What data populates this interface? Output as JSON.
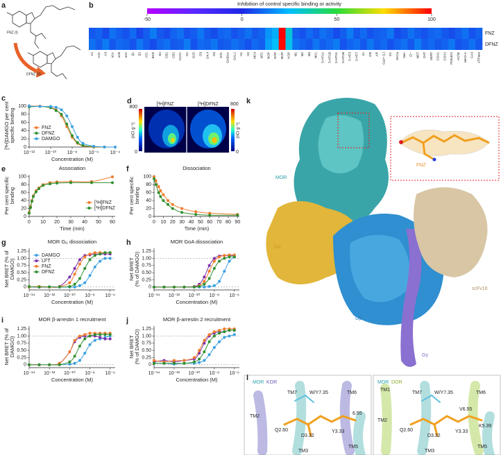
{
  "panels": {
    "a": {
      "label": "a",
      "compounds": [
        "FNZ (I)",
        "DFNZ (II)"
      ]
    },
    "b": {
      "label": "b",
      "title": "Inhibition of control specific binding or activity",
      "colorbar_lim": [
        -50,
        100
      ],
      "colorbar_ticks": [
        -50,
        0,
        50,
        100
      ],
      "rows": [
        "FNZ",
        "DFNZ"
      ],
      "targets": [
        "A1",
        "A2A",
        "A3",
        "α1A",
        "α1B",
        "α2A",
        "β1",
        "β2",
        "AT1",
        "BZD",
        "B2",
        "CB1",
        "CB2",
        "CCK1",
        "D1",
        "D2S",
        "D3",
        "D4.4",
        "D5",
        "ETA",
        "GABAA",
        "GAL1",
        "H1",
        "H2",
        "MC4",
        "MT1",
        "NOP",
        "DOP",
        "MOP",
        "KOP",
        "M1",
        "M2",
        "M3",
        "NK1",
        "5-HT1A",
        "5-HT1B",
        "5-HT2A",
        "5-HT2B",
        "5-HT3",
        "5-HT7",
        "σ1",
        "GR",
        "AR",
        "Ca2+ (L)",
        "KV",
        "SKCa",
        "Na+",
        "Cl−",
        "NET",
        "DAT",
        "SERT",
        "COX1",
        "COX2",
        "PDE4D2",
        "AChE",
        "MAO-A",
        "CAII",
        "ATPase"
      ],
      "values": [
        [
          8,
          10,
          6,
          12,
          9,
          7,
          11,
          5,
          9,
          14,
          8,
          6,
          10,
          12,
          7,
          9,
          13,
          8,
          6,
          10,
          11,
          7,
          9,
          12,
          8,
          10,
          18,
          22,
          100,
          30,
          9,
          7,
          11,
          8,
          12,
          10,
          6,
          9,
          14,
          8,
          11,
          7,
          9,
          10,
          13,
          6,
          8,
          12,
          9,
          7,
          10,
          11,
          8,
          6,
          9,
          12,
          7,
          10
        ],
        [
          12,
          9,
          14,
          8,
          11,
          10,
          7,
          13,
          9,
          6,
          10,
          12,
          8,
          9,
          14,
          7,
          11,
          10,
          13,
          8,
          9,
          12,
          10,
          7,
          11,
          9,
          20,
          25,
          99,
          28,
          12,
          10,
          8,
          13,
          9,
          11,
          14,
          7,
          10,
          12,
          8,
          13,
          9,
          11,
          7,
          10,
          12,
          8,
          14,
          9,
          11,
          8,
          10,
          13,
          7,
          9,
          12,
          8
        ]
      ]
    },
    "c": {
      "label": "c",
      "type": "line",
      "log_x": true,
      "xlabel": "Concentration (M)",
      "ylabel": [
        "[³H]DAMGO per cent",
        "specific binding"
      ],
      "x": [
        1e-12,
        1e-11,
        1e-10,
        3.16e-10,
        1e-09,
        3.16e-09,
        1e-08,
        3.16e-08,
        1e-07,
        1e-06,
        1e-05,
        0.0001
      ],
      "xlim": [
        1e-12,
        0.0001
      ],
      "xticks": [
        {
          "value": 1e-12,
          "label": "10⁻¹²"
        },
        {
          "value": 1e-10,
          "label": "10⁻¹⁰"
        },
        {
          "value": 1e-08,
          "label": "10⁻⁸"
        },
        {
          "value": 1e-06,
          "label": "10⁻⁶"
        },
        {
          "value": 0.0001,
          "label": "10⁻⁴"
        }
      ],
      "ylim": [
        0,
        105
      ],
      "yticks": [
        0,
        20,
        40,
        60,
        80,
        100
      ],
      "legend": "lower left",
      "series": [
        {
          "name": "FNZ",
          "color": "#f07a2a",
          "values": [
            100,
            100,
            97,
            91,
            76,
            50,
            24,
            9,
            3,
            0,
            0,
            null
          ]
        },
        {
          "name": "DFNZ",
          "color": "#2f8f2f",
          "values": [
            98,
            99,
            96,
            89,
            80,
            56,
            28,
            11,
            4,
            1,
            0,
            null
          ]
        },
        {
          "name": "DAMGO",
          "color": "#3aa0e0",
          "values": [
            100,
            99,
            99,
            97,
            91,
            76,
            50,
            24,
            9,
            2,
            0,
            0
          ]
        }
      ]
    },
    "d": {
      "label": "d",
      "images": [
        "[³H]FNZ",
        "[³H]DFNZ"
      ],
      "left_scale": [
        0,
        800
      ],
      "right_scale": [
        0,
        800
      ],
      "unit": "(nCi g⁻¹)"
    },
    "e": {
      "label": "e",
      "type": "line",
      "title": "Association",
      "xlabel": "Time (min)",
      "ylabel": [
        "Per cent specific",
        "binding"
      ],
      "x": [
        0,
        1,
        2,
        3,
        5,
        7,
        10,
        15,
        20,
        30,
        45,
        60
      ],
      "xlim": [
        0,
        62
      ],
      "xticks": [
        0,
        10,
        20,
        30,
        40,
        50,
        60
      ],
      "ylim": [
        0,
        105
      ],
      "yticks": [
        0,
        20,
        40,
        60,
        80,
        100
      ],
      "legend": "lower right",
      "series": [
        {
          "name": "[³H]FNZ",
          "color": "#f07a2a",
          "values": [
            10,
            25,
            40,
            52,
            65,
            72,
            80,
            85,
            87,
            88,
            88,
            100
          ]
        },
        {
          "name": "[³H]DFNZ",
          "color": "#2f8f2f",
          "values": [
            8,
            22,
            38,
            50,
            62,
            70,
            78,
            82,
            84,
            85,
            85,
            85
          ]
        }
      ]
    },
    "f": {
      "label": "f",
      "type": "line",
      "title": "Dissociation",
      "xlabel": "Time (min)",
      "ylabel": [
        "Per cent specific",
        "binding"
      ],
      "x": [
        0,
        2,
        5,
        7,
        10,
        15,
        20,
        30,
        45,
        60,
        90
      ],
      "xlim": [
        0,
        92
      ],
      "xticks": [
        0,
        10,
        20,
        30,
        40,
        50,
        60,
        70,
        80,
        90
      ],
      "ylim": [
        0,
        105
      ],
      "yticks": [
        0,
        20,
        40,
        60,
        80,
        100
      ],
      "series": [
        {
          "color": "#f07a2a",
          "values": [
            100,
            90,
            75,
            65,
            55,
            40,
            30,
            20,
            12,
            8,
            5
          ]
        },
        {
          "color": "#2f8f2f",
          "values": [
            95,
            80,
            60,
            50,
            40,
            30,
            20,
            10,
            5,
            3,
            3
          ]
        }
      ]
    },
    "g": {
      "label": "g",
      "type": "line",
      "title": "MOR Gᵢ₁ dissociation",
      "log_x": true,
      "xlabel": "Concentration (M)",
      "ylabel": [
        "Net BRET (% of",
        "DAMGO)"
      ],
      "x": [
        1e-14,
        1e-13,
        1e-12,
        1e-11,
        1e-10,
        3.16e-10,
        1e-09,
        3.16e-09,
        1e-08,
        3.16e-08,
        1e-07,
        3.16e-07,
        1e-06
      ],
      "xlim": [
        1e-14,
        3.16e-06
      ],
      "xticks": [
        {
          "value": 1e-14,
          "label": "10⁻¹⁴"
        },
        {
          "value": 1e-12,
          "label": "10⁻¹²"
        },
        {
          "value": 1e-10,
          "label": "10⁻¹⁰"
        },
        {
          "value": 1e-08,
          "label": "10⁻⁸"
        },
        {
          "value": 1e-06,
          "label": "10⁻⁶"
        }
      ],
      "ylim": [
        -0.1,
        1.35
      ],
      "yticks": [
        0,
        0.25,
        {
          "value": 0.5,
          "label": "0.50"
        },
        0.75,
        {
          "value": 1,
          "label": "1.00"
        },
        1.25
      ],
      "ref_lines": [
        0,
        1
      ],
      "legend": "upper left",
      "series": [
        {
          "name": "DAMGO",
          "color": "#3aa0e0",
          "values": [
            0,
            0,
            0.01,
            0,
            0,
            0,
            0.05,
            0.15,
            0.4,
            0.7,
            0.9,
            1.0,
            1.0
          ]
        },
        {
          "name": "LFT",
          "color": "#7b2fa8",
          "values": [
            0.01,
            0,
            0,
            0.02,
            0.35,
            0.65,
            0.95,
            1.1,
            1.12,
            1.15,
            1.15,
            1.15,
            1.15
          ]
        },
        {
          "name": "FNZ",
          "color": "#f07a2a",
          "values": [
            0,
            0.02,
            0,
            0.01,
            0.15,
            0.45,
            0.8,
            1.05,
            1.15,
            1.2,
            1.2,
            1.2,
            1.2
          ]
        },
        {
          "name": "DFNZ",
          "color": "#2f8f2f",
          "values": [
            0.02,
            0,
            0.01,
            0,
            0.02,
            0.1,
            0.3,
            0.65,
            0.95,
            1.1,
            1.15,
            1.2,
            1.2
          ]
        }
      ]
    },
    "h": {
      "label": "h",
      "type": "line",
      "title": "MOR GoA dissociation",
      "log_x": true,
      "xlabel": "Concentration (M)",
      "ylabel": [
        "Net BRET",
        "(% of DAMGO)"
      ],
      "x": [
        1e-14,
        1e-13,
        1e-12,
        1e-11,
        1e-10,
        3.16e-10,
        1e-09,
        3.16e-09,
        1e-08,
        3.16e-08,
        1e-07,
        3.16e-07,
        1e-06
      ],
      "xlim": [
        1e-14,
        3.16e-06
      ],
      "xticks": [
        {
          "value": 1e-14,
          "label": "10⁻¹⁴"
        },
        {
          "value": 1e-12,
          "label": "10⁻¹²"
        },
        {
          "value": 1e-10,
          "label": "10⁻¹⁰"
        },
        {
          "value": 1e-08,
          "label": "10⁻⁸"
        },
        {
          "value": 1e-06,
          "label": "10⁻⁶"
        }
      ],
      "ylim": [
        -0.1,
        1.35
      ],
      "yticks": [
        0,
        0.25,
        {
          "value": 0.5,
          "label": "0.50"
        },
        0.75,
        {
          "value": 1,
          "label": "1.00"
        },
        1.25
      ],
      "ref_lines": [
        0,
        1
      ],
      "series": [
        {
          "color": "#3aa0e0",
          "values": [
            0,
            0,
            0,
            0,
            0,
            0,
            0,
            0.02,
            0.05,
            0.2,
            0.55,
            0.9,
            1.05
          ]
        },
        {
          "color": "#7b2fa8",
          "values": [
            0,
            0,
            0,
            0,
            0.02,
            0.1,
            0.35,
            0.75,
            1.0,
            1.08,
            1.1,
            1.1,
            1.1
          ]
        },
        {
          "color": "#f07a2a",
          "values": [
            0,
            0,
            0,
            0,
            0.01,
            0.05,
            0.2,
            0.55,
            0.9,
            1.05,
            1.1,
            1.12,
            1.12
          ]
        },
        {
          "color": "#2f8f2f",
          "values": [
            0,
            0,
            0,
            0,
            0,
            0.02,
            0.1,
            0.3,
            0.65,
            0.9,
            1.0,
            1.05,
            1.05
          ]
        }
      ]
    },
    "i": {
      "label": "i",
      "type": "line",
      "title": "MOR β-arrestin 1 recruitment",
      "log_x": true,
      "xlabel": "Concentration (M)",
      "ylabel": [
        "Net BRET (% of",
        "DAMGO)"
      ],
      "x": [
        1e-14,
        1e-13,
        1e-12,
        1e-11,
        1e-10,
        3.16e-10,
        1e-09,
        3.16e-09,
        1e-08,
        3.16e-08,
        1e-07,
        3.16e-07,
        1e-06
      ],
      "xlim": [
        1e-14,
        3.16e-06
      ],
      "xticks": [
        {
          "value": 1e-14,
          "label": "10⁻¹⁴"
        },
        {
          "value": 1e-12,
          "label": "10⁻¹²"
        },
        {
          "value": 1e-10,
          "label": "10⁻¹⁰"
        },
        {
          "value": 1e-08,
          "label": "10⁻⁸"
        },
        {
          "value": 1e-06,
          "label": "10⁻⁶"
        }
      ],
      "ylim": [
        -0.1,
        1.35
      ],
      "yticks": [
        0,
        0.25,
        {
          "value": 0.5,
          "label": "0.50"
        },
        0.75,
        {
          "value": 1,
          "label": "1.00"
        },
        1.25
      ],
      "ref_lines": [
        0,
        1
      ],
      "series": [
        {
          "color": "#3aa0e0",
          "values": [
            0,
            0,
            0,
            0,
            0.02,
            0.05,
            0.15,
            0.4,
            0.7,
            0.85,
            0.9,
            0.95,
            1.0
          ]
        },
        {
          "color": "#7b2fa8",
          "values": [
            0,
            0,
            0,
            0.05,
            0.45,
            0.8,
            0.95,
            1.0,
            1.0,
            1.0,
            0.95,
            0.9,
            0.9
          ]
        },
        {
          "color": "#f07a2a",
          "values": [
            0,
            0,
            0,
            0.05,
            0.45,
            0.85,
            1.0,
            1.05,
            1.1,
            1.1,
            1.1,
            1.1,
            1.1
          ]
        },
        {
          "color": "#2f8f2f",
          "values": [
            0,
            0,
            0,
            0,
            0.1,
            0.3,
            0.65,
            0.9,
            1.0,
            1.05,
            1.05,
            1.05,
            1.05
          ]
        }
      ]
    },
    "j": {
      "label": "j",
      "type": "line",
      "title": "MOR β-arrestin 2 recruitment",
      "log_x": true,
      "xlabel": "Concentration (M)",
      "ylabel": [
        "Net BRET",
        "(% of DAMGO)"
      ],
      "x": [
        1e-14,
        1e-13,
        1e-12,
        1e-11,
        1e-10,
        3.16e-10,
        1e-09,
        3.16e-09,
        1e-08,
        3.16e-08,
        1e-07,
        3.16e-07,
        1e-06
      ],
      "xlim": [
        1e-14,
        3.16e-06
      ],
      "xticks": [
        {
          "value": 1e-14,
          "label": "10⁻¹⁴"
        },
        {
          "value": 1e-12,
          "label": "10⁻¹²"
        },
        {
          "value": 1e-10,
          "label": "10⁻¹⁰"
        },
        {
          "value": 1e-08,
          "label": "10⁻⁸"
        },
        {
          "value": 1e-06,
          "label": "10⁻⁶"
        }
      ],
      "ylim": [
        -0.1,
        1.35
      ],
      "yticks": [
        0,
        0.25,
        {
          "value": 0.5,
          "label": "0.50"
        },
        0.75,
        {
          "value": 1,
          "label": "1.00"
        },
        1.25
      ],
      "ref_lines": [
        0,
        1
      ],
      "series": [
        {
          "color": "#3aa0e0",
          "values": [
            0.05,
            0.05,
            0.02,
            0.05,
            0.05,
            0.08,
            0.15,
            0.35,
            0.6,
            0.8,
            0.95,
            1.0,
            1.05
          ]
        },
        {
          "color": "#7b2fa8",
          "values": [
            0.1,
            0.15,
            0.1,
            0.15,
            0.2,
            0.4,
            0.75,
            1.0,
            1.1,
            1.15,
            1.15,
            1.2,
            1.2
          ]
        },
        {
          "color": "#f07a2a",
          "values": [
            0.15,
            0.1,
            0.15,
            0.15,
            0.25,
            0.5,
            0.85,
            1.05,
            1.15,
            1.2,
            1.25,
            1.25,
            1.25
          ]
        },
        {
          "color": "#2f8f2f",
          "values": [
            0.05,
            0.05,
            0.05,
            0.05,
            0.1,
            0.2,
            0.45,
            0.8,
            1.0,
            1.1,
            1.15,
            1.2,
            1.2
          ]
        }
      ]
    },
    "k": {
      "label": "k",
      "chains": [
        "MOR",
        "Gα",
        "Gβ",
        "Gγ",
        "scFv16"
      ],
      "ligand": "FNZ"
    },
    "l": {
      "label": "l",
      "left": {
        "receptors": [
          "MOR",
          "KOR"
        ],
        "labels": [
          "TM7",
          "W/Y7.35",
          "TM6",
          "TM2",
          "6.55",
          "Q2.60",
          "D3.32",
          "Y3.33",
          "TM3",
          "TM5"
        ]
      },
      "right": {
        "receptors": [
          "MOR",
          "DOR"
        ],
        "labels": [
          "TM1",
          "TM7",
          "W/Y7.35",
          "TM6",
          "V6.55",
          "TM2",
          "Q2.60",
          "D3.32",
          "Y3.33",
          "K5.39",
          "TM3",
          "TM5"
        ]
      }
    }
  }
}
